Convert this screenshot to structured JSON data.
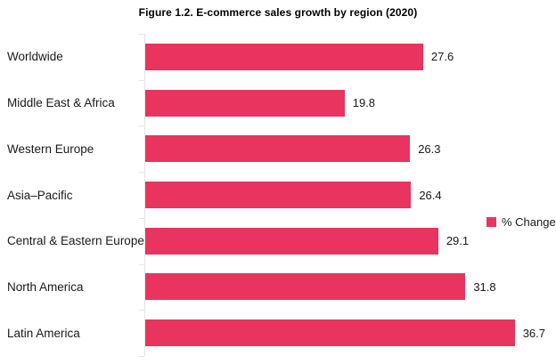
{
  "title": "Figure 1.2. E-commerce sales growth by region (2020)",
  "legend": {
    "label": "% Change"
  },
  "colors": {
    "bar": "#E8345F",
    "axis": "#E4E4E4",
    "text": "#1A1A1A"
  },
  "chart_data": {
    "type": "bar",
    "orientation": "horizontal",
    "title": "Figure 1.2. E-commerce sales growth by region (2020)",
    "categories": [
      "Worldwide",
      "Middle East & Africa",
      "Western Europe",
      "Asia–Pacific",
      "Central & Eastern Europe",
      "North America",
      "Latin America"
    ],
    "values": [
      27.6,
      19.8,
      26.3,
      26.4,
      29.1,
      31.8,
      36.7
    ],
    "series": [
      {
        "name": "% Change",
        "values": [
          27.6,
          19.8,
          26.3,
          26.4,
          29.1,
          31.8,
          36.7
        ]
      }
    ],
    "xlabel": "",
    "ylabel": "",
    "xlim": [
      0,
      40
    ],
    "grid": false,
    "value_labels": true,
    "legend_entries": [
      "% Change"
    ],
    "legend_position": "right"
  }
}
